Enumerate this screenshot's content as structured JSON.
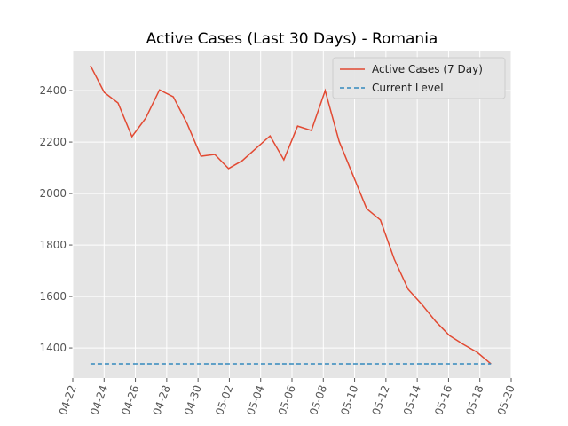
{
  "chart_data": {
    "type": "line",
    "title": "Active Cases (Last 30 Days) - Romania",
    "x": [
      1.13,
      2.01,
      2.89,
      3.78,
      4.66,
      5.54,
      6.42,
      7.3,
      8.19,
      9.07,
      9.95,
      10.83,
      11.71,
      12.6,
      13.48,
      14.36,
      15.24,
      16.12,
      17.01,
      17.89,
      18.77,
      19.65,
      20.53,
      21.42,
      22.3,
      23.18,
      24.06,
      24.94,
      25.83,
      26.71
    ],
    "series": [
      {
        "name": "Active Cases (7 Day)",
        "color": "#E24A33",
        "values": [
          2497,
          2393,
          2352,
          2221,
          2293,
          2403,
          2376,
          2272,
          2145,
          2152,
          2097,
          2128,
          2176,
          2224,
          2131,
          2262,
          2245,
          2400,
          2203,
          2072,
          1941,
          1897,
          1745,
          1628,
          1569,
          1503,
          1448,
          1414,
          1383,
          1338
        ]
      },
      {
        "name": "Current Level",
        "color": "#348ABD",
        "dashed": true,
        "value": 1338
      }
    ],
    "xlim": [
      0,
      28
    ],
    "xticks": [
      {
        "value": 0,
        "label": "04-22"
      },
      {
        "value": 2,
        "label": "04-24"
      },
      {
        "value": 4,
        "label": "04-26"
      },
      {
        "value": 6,
        "label": "04-28"
      },
      {
        "value": 8,
        "label": "04-30"
      },
      {
        "value": 10,
        "label": "05-02"
      },
      {
        "value": 12,
        "label": "05-04"
      },
      {
        "value": 14,
        "label": "05-06"
      },
      {
        "value": 16,
        "label": "05-08"
      },
      {
        "value": 18,
        "label": "05-10"
      },
      {
        "value": 20,
        "label": "05-12"
      },
      {
        "value": 22,
        "label": "05-14"
      },
      {
        "value": 24,
        "label": "05-16"
      },
      {
        "value": 26,
        "label": "05-18"
      },
      {
        "value": 28,
        "label": "05-20"
      }
    ],
    "ylim": [
      1283,
      2552
    ],
    "yticks": [
      1400,
      1600,
      1800,
      2000,
      2200,
      2400
    ],
    "grid": true,
    "legend": "upper right"
  }
}
